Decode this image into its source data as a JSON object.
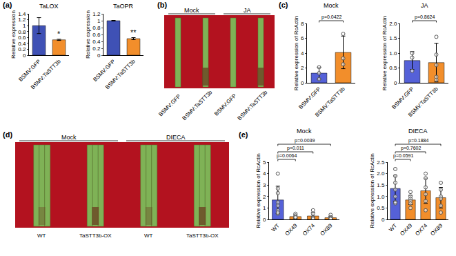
{
  "chart_data": [
    {
      "panel": "(a)",
      "type": "bar",
      "title": "TaLOX",
      "y_label": "Relative expression",
      "categories": [
        "BSMV:GFP",
        "BSMV:TaSTT3b"
      ],
      "values": [
        1.0,
        0.52
      ],
      "errors": [
        0.27,
        0.02
      ],
      "colors": [
        "#3f51b5",
        "#f28e2b"
      ],
      "ylim": [
        0,
        1.4
      ],
      "yticks": [
        0,
        0.2,
        0.4,
        0.6,
        0.8,
        1,
        1.2,
        1.4
      ],
      "significance": [
        {
          "category": "BSMV:TaSTT3b",
          "label": "*"
        }
      ]
    },
    {
      "type": "bar",
      "title": "TaOPR",
      "y_label": "Relative expression",
      "categories": [
        "BSMV:GFP",
        "BSMV:TaSTT3b"
      ],
      "values": [
        1.0,
        0.48
      ],
      "errors": [
        0.01,
        0.03
      ],
      "colors": [
        "#3f51b5",
        "#f28e2b"
      ],
      "ylim": [
        0,
        1.2
      ],
      "yticks": [
        0,
        0.2,
        0.4,
        0.6,
        0.8,
        1,
        1.2
      ],
      "significance": [
        {
          "category": "BSMV:TaSTT3b",
          "label": "**"
        }
      ]
    },
    {
      "panel": "(c)",
      "type": "bar",
      "title": "Mock",
      "y_label": "Relative expression of RcActin",
      "categories": [
        "BSMV:GFP",
        "BSMV:TaSTT3b"
      ],
      "values": [
        1.3,
        4.1
      ],
      "errors": [
        0.8,
        2.2
      ],
      "points": [
        [
          0.5,
          1.3,
          2.1
        ],
        [
          2.5,
          3.3,
          6.6
        ]
      ],
      "colors": [
        "#5561d8",
        "#f28e2b"
      ],
      "ylim": [
        0,
        8
      ],
      "yticks": [
        0,
        2,
        4,
        6,
        8
      ],
      "comparisons": [
        {
          "from": "BSMV:GFP",
          "to": "BSMV:TaSTT3b",
          "label": "p=0.0422"
        }
      ]
    },
    {
      "type": "bar",
      "title": "JA",
      "y_label": "Relative expression of RcActin",
      "categories": [
        "BSMV:GFP",
        "BSMV:TaSTT3b"
      ],
      "values": [
        0.75,
        0.68
      ],
      "errors": [
        0.3,
        0.65
      ],
      "points": [
        [
          0.4,
          1.0,
          0.85
        ],
        [
          0.1,
          0.2,
          0.6,
          0.95,
          1.55
        ]
      ],
      "colors": [
        "#5561d8",
        "#f28e2b"
      ],
      "ylim": [
        0,
        2
      ],
      "yticks": [
        0,
        0.5,
        {
          "value": 1,
          "label": "1.0"
        },
        1.5,
        {
          "value": 2,
          "label": "2.0"
        }
      ],
      "comparisons": [
        {
          "from": "BSMV:GFP",
          "to": "BSMV:TaSTT3b",
          "label": "p=0.8624"
        }
      ]
    },
    {
      "panel": "(e)",
      "type": "bar",
      "title": "Mock",
      "y_label": "Relative expression of RcActin",
      "categories": [
        "WT",
        "OX49",
        "OX74",
        "OX89"
      ],
      "values": [
        1.7,
        0.25,
        0.3,
        0.15
      ],
      "errors": [
        1.2,
        0.15,
        0.3,
        0.12
      ],
      "points": [
        [
          4.0,
          2.7,
          2.3,
          1.5,
          1.2,
          0.8,
          0.5,
          0.6
        ],
        [
          0.5,
          0.35,
          0.2,
          0.1,
          0.15,
          0.2
        ],
        [
          0.8,
          0.5,
          0.2,
          0.1,
          0.15,
          0.05
        ],
        [
          0.4,
          0.2,
          0.1,
          0.05,
          0.1,
          0.05
        ]
      ],
      "colors": [
        "#5561d8",
        "#f28e2b",
        "#f28e2b",
        "#f28e2b"
      ],
      "ylim": [
        0,
        5
      ],
      "yticks": [
        0,
        1,
        2,
        3,
        4,
        5
      ],
      "comparisons": [
        {
          "from": "WT",
          "to": "OX49",
          "label": "p=0.0064"
        },
        {
          "from": "WT",
          "to": "OX74",
          "label": "p=0.011"
        },
        {
          "from": "WT",
          "to": "OX89",
          "label": "p=0.0039"
        }
      ]
    },
    {
      "type": "bar",
      "title": "DIECA",
      "y_label": "Relative expression of RcActin",
      "categories": [
        "WT",
        "OX49",
        "OX74",
        "OX89"
      ],
      "values": [
        1.35,
        0.85,
        1.25,
        0.95
      ],
      "errors": [
        0.55,
        0.2,
        0.55,
        0.45
      ],
      "points": [
        [
          2.2,
          1.9,
          1.6,
          1.3,
          1.0,
          0.7,
          0.75
        ],
        [
          1.2,
          1.0,
          0.9,
          0.8,
          0.7,
          0.5
        ],
        [
          2.0,
          1.8,
          1.4,
          1.1,
          0.8,
          0.4
        ],
        [
          1.6,
          1.3,
          1.0,
          0.9,
          0.6,
          0.3
        ]
      ],
      "colors": [
        "#5561d8",
        "#f28e2b",
        "#f28e2b",
        "#f28e2b"
      ],
      "ylim": [
        0,
        2.5
      ],
      "yticks": [
        0,
        0.5,
        {
          "value": 1,
          "label": "1.0"
        },
        1.5,
        {
          "value": 2,
          "label": "2.0"
        },
        2.5
      ],
      "comparisons": [
        {
          "from": "WT",
          "to": "OX49",
          "label": "p=0.0591"
        },
        {
          "from": "WT",
          "to": "OX74",
          "label": "p=0.7602"
        },
        {
          "from": "WT",
          "to": "OX89",
          "label": "p=0.1884"
        }
      ]
    }
  ],
  "photo_panels": [
    {
      "panel": "(b)",
      "groups": [
        {
          "label": "Mock",
          "items": [
            "BSMV:GFP",
            "BSMV:TaSTT3b"
          ]
        },
        {
          "label": "JA",
          "items": [
            "BSMV:GFP",
            "BSMV:TaSTT3b"
          ]
        }
      ]
    },
    {
      "panel": "(d)",
      "groups": [
        {
          "label": "Mock",
          "items": [
            "WT",
            "TaSTT3b-OX"
          ]
        },
        {
          "label": "DIECA",
          "items": [
            "WT",
            "TaSTT3b-OX"
          ]
        }
      ]
    }
  ]
}
